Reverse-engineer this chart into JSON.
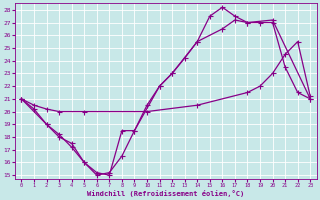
{
  "xlabel": "Windchill (Refroidissement éolien,°C)",
  "xlim": [
    -0.5,
    23.5
  ],
  "ylim": [
    14.7,
    28.5
  ],
  "xticks": [
    0,
    1,
    2,
    3,
    4,
    5,
    6,
    7,
    8,
    9,
    10,
    11,
    12,
    13,
    14,
    15,
    16,
    17,
    18,
    19,
    20,
    21,
    22,
    23
  ],
  "yticks": [
    15,
    16,
    17,
    18,
    19,
    20,
    21,
    22,
    23,
    24,
    25,
    26,
    27,
    28
  ],
  "bg_color": "#c8e8e8",
  "line_color": "#880088",
  "line1_x": [
    0,
    1,
    2,
    3,
    4,
    5,
    6,
    7,
    8,
    9,
    10,
    11,
    12,
    13,
    14,
    15,
    16,
    17,
    18,
    19,
    20,
    21,
    22,
    23
  ],
  "line1_y": [
    21.0,
    20.2,
    19.0,
    18.0,
    17.5,
    16.0,
    15.0,
    15.2,
    16.5,
    18.5,
    20.5,
    22.0,
    23.0,
    24.2,
    25.5,
    27.5,
    28.2,
    27.5,
    27.0,
    27.0,
    27.0,
    23.5,
    21.5,
    21.0
  ],
  "line2_x": [
    0,
    1,
    2,
    3,
    5,
    10,
    14,
    18,
    19,
    20,
    21,
    22,
    23
  ],
  "line2_y": [
    21.0,
    20.5,
    20.2,
    20.0,
    20.0,
    20.0,
    20.5,
    21.5,
    22.0,
    23.0,
    24.5,
    25.5,
    21.2
  ],
  "line3_x": [
    0,
    2,
    3,
    4,
    5,
    6,
    7,
    8,
    9,
    11,
    12,
    14,
    16,
    17,
    18,
    20,
    23
  ],
  "line3_y": [
    21.0,
    19.0,
    18.2,
    17.2,
    16.0,
    15.2,
    15.0,
    18.5,
    18.5,
    22.0,
    23.0,
    25.5,
    26.5,
    27.2,
    27.0,
    27.2,
    21.0
  ]
}
